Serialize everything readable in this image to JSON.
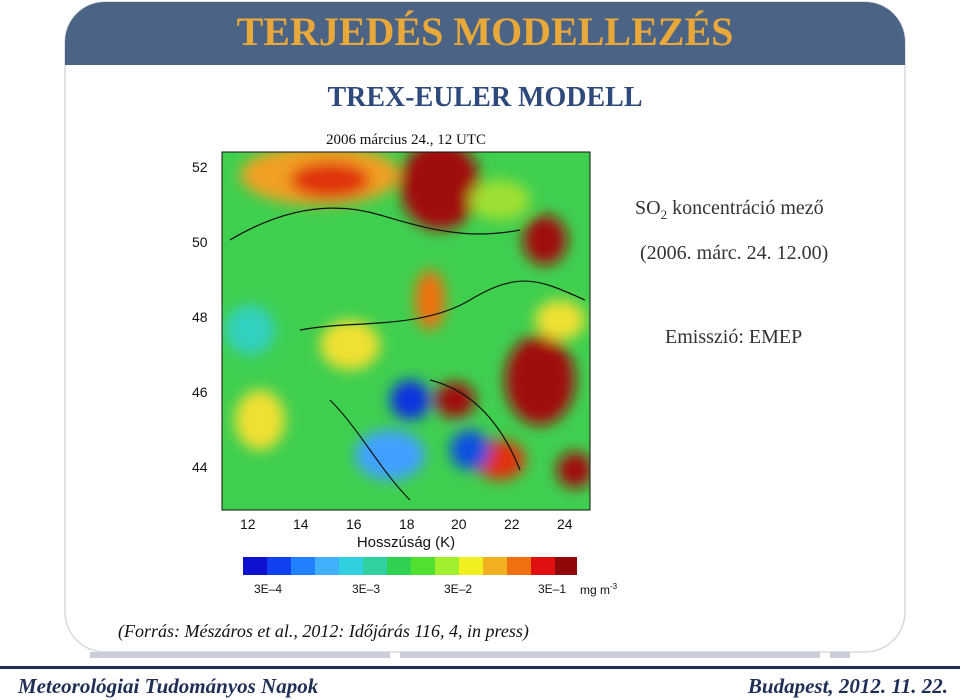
{
  "header": {
    "title": "TERJEDÉS MODELLEZÉS"
  },
  "subtitle": "TREX-EULER MODELL",
  "figure": {
    "title": "2006 március 24., 12 UTC",
    "lat_labels": [
      "52",
      "50",
      "48",
      "46",
      "44"
    ],
    "lon_labels": [
      "12",
      "14",
      "16",
      "18",
      "20",
      "22",
      "24"
    ],
    "x_axis_label": "Hosszúság (K)",
    "colorbar_labels": [
      "3E–4",
      "3E–3",
      "3E–2",
      "3E–1"
    ],
    "colorbar_unit": "mg m",
    "colorbar_unit_exp": "-3"
  },
  "notes": {
    "field_prefix": "SO",
    "field_sub": "2",
    "field_suffix": " koncentráció mező",
    "date": "(2006. márc. 24. 12.00)",
    "emission": "Emisszió: EMEP"
  },
  "source": "(Forrás: Mészáros et al., 2012: Időjárás 116, 4, in press)",
  "footer": {
    "left": "Meteorológiai Tudományos Napok",
    "right": "Budapest, 2012. 11. 22."
  }
}
